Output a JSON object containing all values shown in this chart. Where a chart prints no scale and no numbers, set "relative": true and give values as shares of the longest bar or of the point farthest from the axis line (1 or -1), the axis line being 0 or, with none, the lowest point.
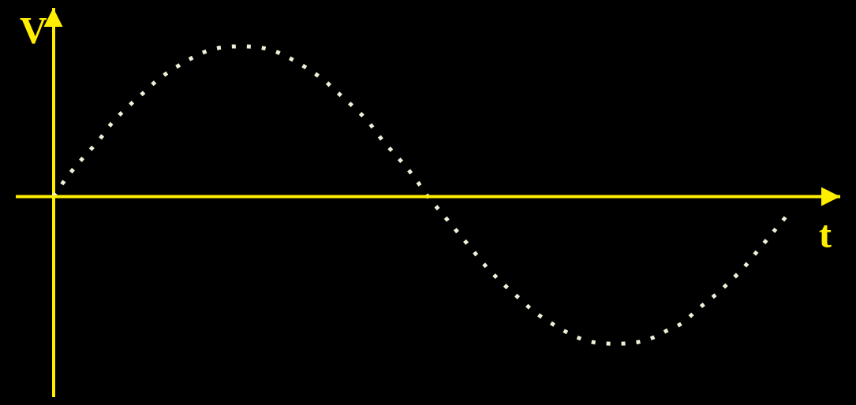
{
  "chart_data": {
    "type": "line",
    "xlabel": "t",
    "ylabel": "V",
    "relative": true,
    "ref_lines": [
      {
        "axis": "y",
        "value": 0,
        "color": "#ffee00"
      }
    ],
    "line_style": "dotted",
    "grid": false,
    "tick_labels": false,
    "categories": [
      null,
      null,
      null,
      null,
      null,
      null,
      null,
      null,
      null,
      null,
      null,
      null,
      null,
      null,
      null,
      null,
      null,
      null,
      null,
      null,
      null,
      null,
      null,
      null,
      null,
      null,
      null,
      null,
      null,
      null,
      null,
      null,
      null,
      null,
      null,
      null,
      null,
      null,
      null,
      null,
      null,
      null,
      null,
      null,
      null,
      null,
      null,
      null,
      null,
      null
    ],
    "series": [
      {
        "color": "#f0f0d8",
        "values": [
          0,
          0.14,
          0.26,
          0.37,
          0.5,
          0.6,
          0.69,
          0.78,
          0.85,
          0.91,
          0.96,
          0.99,
          1,
          1,
          0.99,
          0.96,
          0.91,
          0.85,
          0.78,
          0.69,
          0.6,
          0.5,
          0.37,
          0.26,
          0.14,
          0,
          -0.12,
          -0.24,
          -0.36,
          -0.48,
          -0.58,
          -0.67,
          -0.76,
          -0.83,
          -0.89,
          -0.94,
          -0.97,
          -0.98,
          -0.98,
          -0.97,
          -0.94,
          -0.89,
          -0.84,
          -0.75,
          -0.67,
          -0.58,
          -0.48,
          -0.36,
          -0.24,
          -0.12
        ]
      }
    ]
  }
}
